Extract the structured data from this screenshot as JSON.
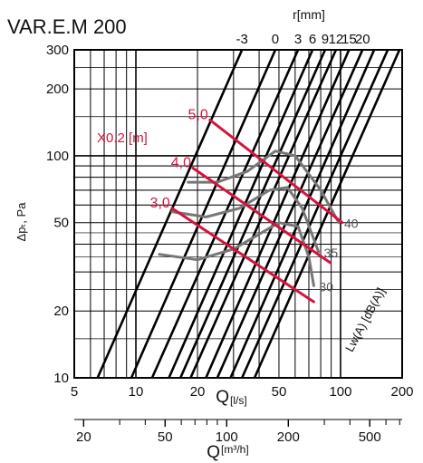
{
  "chart_data": {
    "type": "line",
    "title": "VAR.E.M 200",
    "xlabel": "Q",
    "xlabel_unit": "[l/s]",
    "x2label": "Q",
    "x2label_unit": "[m³/h]",
    "ylabel": "Δpₜ, Pa",
    "xscale": "log",
    "yscale": "log",
    "xlim": [
      5,
      200
    ],
    "ylim": [
      10,
      300
    ],
    "x_ticks": [
      5,
      10,
      20,
      50,
      100,
      200
    ],
    "x_tick_labels": [
      "5",
      "10",
      "20",
      "50",
      "100",
      "200"
    ],
    "y_ticks": [
      10,
      20,
      50,
      100,
      200,
      300
    ],
    "y_tick_labels": [
      "10",
      "20",
      "50",
      "100",
      "200",
      "300"
    ],
    "x2_ticks": [
      20,
      50,
      100,
      200,
      500
    ],
    "x2_tick_labels": [
      "20",
      "50",
      "100",
      "200",
      "500"
    ],
    "r_label": "r[mm]",
    "r_lines": [
      {
        "label": "-3",
        "points": [
          [
            6.5,
            10
          ],
          [
            33,
            300
          ]
        ]
      },
      {
        "label": "0",
        "points": [
          [
            9.5,
            10
          ],
          [
            48,
            300
          ]
        ]
      },
      {
        "label": "3",
        "points": [
          [
            12,
            10
          ],
          [
            62,
            300
          ]
        ]
      },
      {
        "label": "6",
        "points": [
          [
            14.5,
            10
          ],
          [
            73,
            300
          ]
        ]
      },
      {
        "label": "9",
        "points": [
          [
            16.5,
            10
          ],
          [
            84,
            300
          ]
        ]
      },
      {
        "label": "12",
        "points": [
          [
            18.5,
            10
          ],
          [
            95,
            300
          ]
        ]
      },
      {
        "label": "15",
        "points": [
          [
            22,
            10
          ],
          [
            110,
            300
          ]
        ]
      },
      {
        "label": "20",
        "points": [
          [
            25,
            10
          ],
          [
            128,
            300
          ]
        ]
      },
      {
        "label": "",
        "points": [
          [
            29,
            10
          ],
          [
            146,
            300
          ]
        ]
      },
      {
        "label": "",
        "points": [
          [
            33,
            10
          ],
          [
            170,
            300
          ]
        ]
      },
      {
        "label": "",
        "points": [
          [
            38,
            10
          ],
          [
            194,
            300
          ]
        ]
      }
    ],
    "throw_label": "X0.2 [m]",
    "throw_lines": [
      {
        "label": "3,0",
        "points": [
          [
            15,
            58
          ],
          [
            74,
            22
          ]
        ]
      },
      {
        "label": "4,0",
        "points": [
          [
            19,
            88
          ],
          [
            89,
            33
          ]
        ]
      },
      {
        "label": "5,0",
        "points": [
          [
            23,
            145
          ],
          [
            102,
            50
          ]
        ]
      }
    ],
    "sound_label": "Lw(A) [dB(A)]",
    "sound_lines": [
      {
        "label": "30",
        "points": [
          [
            13,
            36
          ],
          [
            20,
            34
          ],
          [
            30,
            38
          ],
          [
            50,
            50
          ],
          [
            62,
            48
          ],
          [
            70,
            35
          ],
          [
            74,
            26
          ]
        ]
      },
      {
        "label": "35",
        "points": [
          [
            15,
            56
          ],
          [
            22,
            53
          ],
          [
            32,
            58
          ],
          [
            45,
            70
          ],
          [
            55,
            72
          ],
          [
            65,
            58
          ],
          [
            78,
            37
          ]
        ]
      },
      {
        "label": "40",
        "points": [
          [
            18,
            76
          ],
          [
            25,
            76
          ],
          [
            35,
            85
          ],
          [
            48,
            105
          ],
          [
            60,
            100
          ],
          [
            80,
            70
          ],
          [
            98,
            50
          ]
        ]
      }
    ],
    "grid": true
  }
}
